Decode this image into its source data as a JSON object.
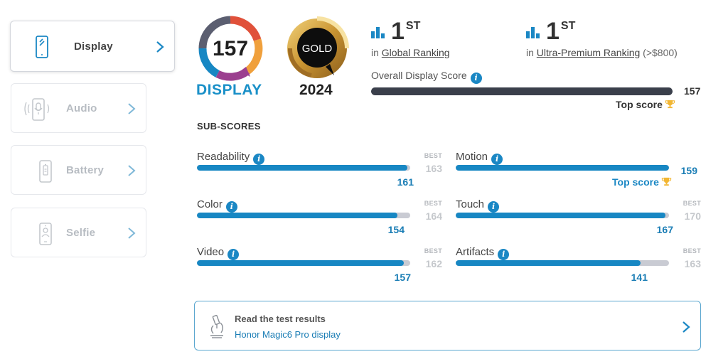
{
  "sidebar": {
    "items": [
      {
        "label": "Display",
        "icon": "phone-display-icon",
        "active": true
      },
      {
        "label": "Audio",
        "icon": "phone-audio-icon",
        "active": false
      },
      {
        "label": "Battery",
        "icon": "phone-battery-icon",
        "active": false
      },
      {
        "label": "Selfie",
        "icon": "phone-selfie-icon",
        "active": false
      }
    ]
  },
  "badges": {
    "display_score": "157",
    "display_label": "DISPLAY",
    "gold_label": "GOLD",
    "year": "2024"
  },
  "rankings": [
    {
      "rank": "1",
      "suffix": "ST",
      "prefix": "in",
      "link": "Global Ranking",
      "extra": ""
    },
    {
      "rank": "1",
      "suffix": "ST",
      "prefix": "in",
      "link": "Ultra-Premium Ranking",
      "extra": "(>$800)"
    }
  ],
  "overall": {
    "label": "Overall Display Score",
    "value": "157",
    "fill": 1.0,
    "top_score_label": "Top score"
  },
  "subscores": {
    "title": "SUB-SCORES",
    "best_label": "BEST",
    "items": [
      {
        "label": "Readability",
        "value": "161",
        "best": "163",
        "fill": 0.988,
        "top_score": ""
      },
      {
        "label": "Motion",
        "value": "159",
        "best": "",
        "fill": 1.0,
        "top_score": "Top score"
      },
      {
        "label": "Color",
        "value": "154",
        "best": "164",
        "fill": 0.939,
        "top_score": ""
      },
      {
        "label": "Touch",
        "value": "167",
        "best": "170",
        "fill": 0.982,
        "top_score": ""
      },
      {
        "label": "Video",
        "value": "157",
        "best": "162",
        "fill": 0.969,
        "top_score": ""
      },
      {
        "label": "Artifacts",
        "value": "141",
        "best": "163",
        "fill": 0.865,
        "top_score": ""
      }
    ]
  },
  "results": {
    "title": "Read the test results",
    "link": "Honor Magic6 Pro display"
  },
  "colors": {
    "accent": "#1787c3",
    "dark_bar": "#3a3f4b",
    "gold": "#d9a640",
    "trophy": "#f2b632"
  }
}
